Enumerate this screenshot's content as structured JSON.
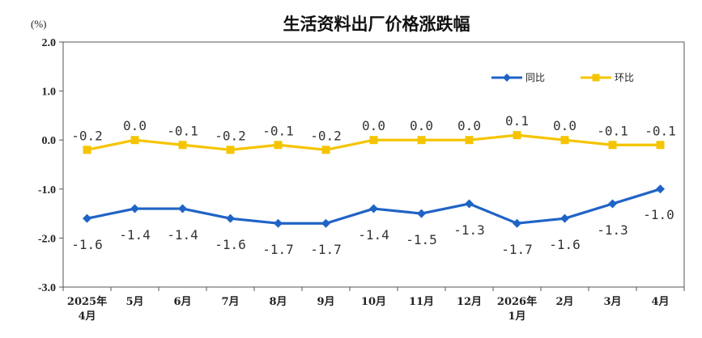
{
  "chart_data": {
    "type": "line",
    "title": "生活资料出厂价格涨跌幅",
    "unit_label": "(%)",
    "categories": [
      [
        "2025年",
        "4月"
      ],
      [
        "5月"
      ],
      [
        "6月"
      ],
      [
        "7月"
      ],
      [
        "8月"
      ],
      [
        "9月"
      ],
      [
        "10月"
      ],
      [
        "11月"
      ],
      [
        "12月"
      ],
      [
        "2026年",
        "1月"
      ],
      [
        "2月"
      ],
      [
        "3月"
      ],
      [
        "4月"
      ]
    ],
    "ylim": [
      -3.0,
      2.0
    ],
    "yticks": [
      "2.0",
      "1.0",
      "0.0",
      "-1.0",
      "-2.0",
      "-3.0"
    ],
    "ytick_values": [
      2.0,
      1.0,
      0.0,
      -1.0,
      -2.0,
      -3.0
    ],
    "grid": false,
    "legend_position": "top-right",
    "series": [
      {
        "name": "同比",
        "color": "#1f63c6",
        "marker": "diamond",
        "values": [
          -1.6,
          -1.4,
          -1.4,
          -1.6,
          -1.7,
          -1.7,
          -1.4,
          -1.5,
          -1.3,
          -1.7,
          -1.6,
          -1.3,
          -1.0
        ],
        "labels": [
          "-1.6",
          "-1.4",
          "-1.4",
          "-1.6",
          "-1.7",
          "-1.7",
          "-1.4",
          "-1.5",
          "-1.3",
          "-1.7",
          "-1.6",
          "-1.3",
          "-1.0"
        ]
      },
      {
        "name": "环比",
        "color": "#f5c400",
        "marker": "square",
        "values": [
          -0.2,
          0.0,
          -0.1,
          -0.2,
          -0.1,
          -0.2,
          0.0,
          0.0,
          0.0,
          0.1,
          0.0,
          -0.1,
          -0.1
        ],
        "labels": [
          "-0.2",
          "0.0",
          "-0.1",
          "-0.2",
          "-0.1",
          "-0.2",
          "0.0",
          "0.0",
          "0.0",
          "0.1",
          "0.0",
          "-0.1",
          "-0.1"
        ]
      }
    ]
  }
}
